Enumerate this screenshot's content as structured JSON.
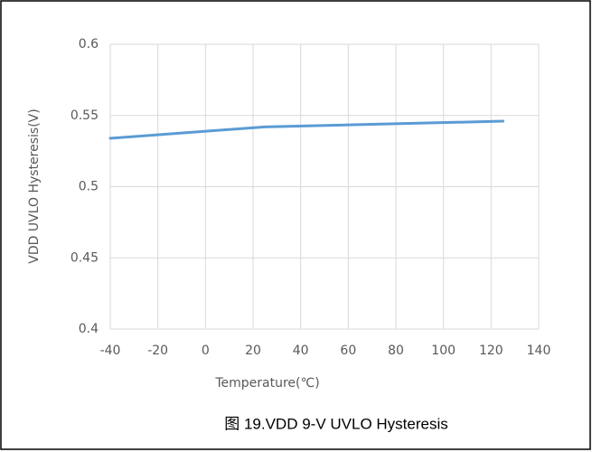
{
  "chart_data": {
    "type": "line",
    "x_label": "Temperature(℃)",
    "y_label": "VDD UVLO Hysteresis(V)",
    "caption": "图 19.VDD 9-V UVLO Hysteresis",
    "series": [
      {
        "name": "VDD UVLO Hysteresis",
        "color": "#5b9bd5",
        "x": [
          -40,
          25,
          125
        ],
        "values": [
          0.534,
          0.542,
          0.546
        ]
      }
    ],
    "xlim": [
      -40,
      140
    ],
    "xticks": [
      -40,
      -20,
      0,
      20,
      40,
      60,
      80,
      100,
      120,
      140
    ],
    "ylim": [
      0.4,
      0.6
    ],
    "yticks": [
      0.4,
      0.45,
      0.5,
      0.55,
      0.6
    ],
    "grid": true
  }
}
